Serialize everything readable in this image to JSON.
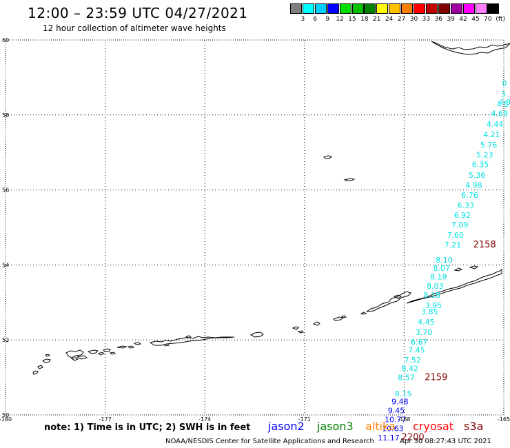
{
  "header": {
    "title": "12:00 – 23:59 UTC 04/27/2021",
    "subtitle": "12 hour collection of altimeter wave heights"
  },
  "colorbar": {
    "unit": "(ft)",
    "labels": [
      "3",
      "6",
      "9",
      "12",
      "15",
      "18",
      "21",
      "24",
      "27",
      "30",
      "33",
      "36",
      "39",
      "42",
      "45",
      "70"
    ],
    "colors": [
      "#808080",
      "#00ffff",
      "#00d0ff",
      "#0000ff",
      "#00e000",
      "#00c000",
      "#008000",
      "#ffff00",
      "#ffc000",
      "#ff8000",
      "#ff0000",
      "#c00000",
      "#800000",
      "#a000a0",
      "#ff00ff",
      "#ff80ff",
      "#000000"
    ]
  },
  "axes": {
    "lon_labels": [
      "-180",
      "-177",
      "-174",
      "-171",
      "-168",
      "-165"
    ],
    "lat_labels": [
      "50",
      "52",
      "54",
      "56",
      "58",
      "60"
    ]
  },
  "observations": [
    {
      "text": "0",
      "lat": 58.85,
      "lon": -165.05,
      "color": "#00e0e0"
    },
    {
      "text": "3.",
      "lat": 58.57,
      "lon": -165.09,
      "color": "#00e0e0"
    },
    {
      "text": "4.93",
      "lat": 58.35,
      "lon": -165.15,
      "color": "#00e0e0"
    },
    {
      "text": "4.5",
      "lat": 58.29,
      "lon": -165.22,
      "color": "#00e0e0"
    },
    {
      "text": "4.69",
      "lat": 58.04,
      "lon": -165.38,
      "color": "#00e0e0"
    },
    {
      "text": "4.44",
      "lat": 57.76,
      "lon": -165.52,
      "color": "#00e0e0"
    },
    {
      "text": "4.21",
      "lat": 57.48,
      "lon": -165.62,
      "color": "#00e0e0"
    },
    {
      "text": "5.76",
      "lat": 57.21,
      "lon": -165.71,
      "color": "#00e0e0"
    },
    {
      "text": "5.23",
      "lat": 56.94,
      "lon": -165.83,
      "color": "#00e0e0"
    },
    {
      "text": "6.35",
      "lat": 56.68,
      "lon": -165.96,
      "color": "#00e0e0"
    },
    {
      "text": "5.36",
      "lat": 56.4,
      "lon": -166.06,
      "color": "#00e0e0"
    },
    {
      "text": "4.98",
      "lat": 56.13,
      "lon": -166.16,
      "color": "#00e0e0"
    },
    {
      "text": "6.76",
      "lat": 55.86,
      "lon": -166.28,
      "color": "#00e0e0"
    },
    {
      "text": "6.33",
      "lat": 55.6,
      "lon": -166.4,
      "color": "#00e0e0"
    },
    {
      "text": "6.92",
      "lat": 55.33,
      "lon": -166.5,
      "color": "#00e0e0"
    },
    {
      "text": "7.09",
      "lat": 55.07,
      "lon": -166.58,
      "color": "#00e0e0"
    },
    {
      "text": "7.60",
      "lat": 54.8,
      "lon": -166.71,
      "color": "#00e0e0"
    },
    {
      "text": "7.21",
      "lat": 54.54,
      "lon": -166.79,
      "color": "#00e0e0"
    },
    {
      "text": "2158",
      "lat": 54.54,
      "lon": -165.92,
      "color": "#800000",
      "big": true
    },
    {
      "text": "8.10",
      "lat": 54.14,
      "lon": -167.05,
      "color": "#00e0e0"
    },
    {
      "text": "8.07",
      "lat": 53.92,
      "lon": -167.13,
      "color": "#00e0e0"
    },
    {
      "text": "8.19",
      "lat": 53.69,
      "lon": -167.22,
      "color": "#00e0e0"
    },
    {
      "text": "8.03",
      "lat": 53.44,
      "lon": -167.32,
      "color": "#00e0e0"
    },
    {
      "text": "8.18",
      "lat": 53.2,
      "lon": -167.42,
      "color": "#00e0e0"
    },
    {
      "text": "3.95",
      "lat": 52.92,
      "lon": -167.37,
      "color": "#00e0e0"
    },
    {
      "text": "3.85",
      "lat": 52.76,
      "lon": -167.49,
      "color": "#00e0e0"
    },
    {
      "text": "4.45",
      "lat": 52.48,
      "lon": -167.59,
      "color": "#00e0e0"
    },
    {
      "text": "3.70",
      "lat": 52.21,
      "lon": -167.66,
      "color": "#00e0e0"
    },
    {
      "text": "6.67",
      "lat": 51.95,
      "lon": -167.8,
      "color": "#00e0e0"
    },
    {
      "text": "7.45",
      "lat": 51.74,
      "lon": -167.88,
      "color": "#00e0e0"
    },
    {
      "text": "7.52",
      "lat": 51.47,
      "lon": -168.0,
      "color": "#00e0e0"
    },
    {
      "text": "8.42",
      "lat": 51.24,
      "lon": -168.08,
      "color": "#00e0e0"
    },
    {
      "text": "8.57",
      "lat": 51.0,
      "lon": -168.19,
      "color": "#00e0e0"
    },
    {
      "text": "2159",
      "lat": 51.0,
      "lon": -167.38,
      "color": "#800000",
      "big": true
    },
    {
      "text": "8.15",
      "lat": 50.57,
      "lon": -168.28,
      "color": "#00e0e0"
    },
    {
      "text": "9.48",
      "lat": 50.36,
      "lon": -168.38,
      "color": "#0000ff"
    },
    {
      "text": "9.45",
      "lat": 50.12,
      "lon": -168.49,
      "color": "#0000ff"
    },
    {
      "text": "10.77",
      "lat": 49.88,
      "lon": -168.59,
      "color": "#0000ff"
    },
    {
      "text": "10.63",
      "lat": 49.64,
      "lon": -168.67,
      "color": "#0000ff"
    },
    {
      "text": "11.17",
      "lat": 49.39,
      "lon": -168.79,
      "color": "#0000ff"
    },
    {
      "text": "2200",
      "lat": 49.4,
      "lon": -168.08,
      "color": "#800000",
      "big": true
    }
  ],
  "legend": {
    "note": "note: 1) Time is in UTC; 2) SWH is in feet",
    "satellites": [
      {
        "name": "jason2",
        "color": "#0000ff"
      },
      {
        "name": "jason3",
        "color": "#008000"
      },
      {
        "name": "altika",
        "color": "#ff8000"
      },
      {
        "name": "cryosat",
        "color": "#ff0000"
      },
      {
        "name": "s3a",
        "color": "#800000"
      }
    ]
  },
  "footer": {
    "credit": "NOAA/NESDIS Center for Satellite Applications and Research",
    "timestamp": "Apr 30 08:27:43 UTC 2021"
  }
}
